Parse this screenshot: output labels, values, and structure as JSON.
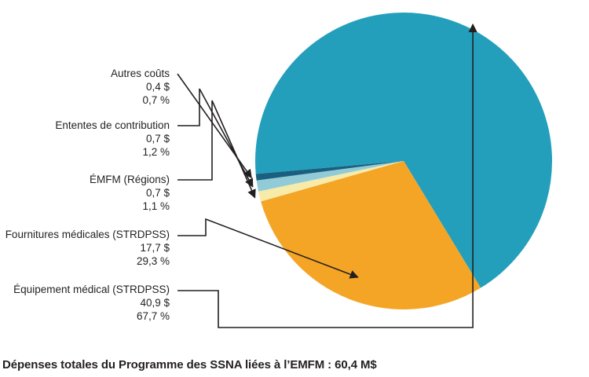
{
  "chart_data": {
    "type": "pie",
    "unit": "M$",
    "title": "",
    "slices": [
      {
        "label": "Équipement médical (STRDPSS)",
        "value_text": "40,9 $",
        "percent_text": "67,7 %",
        "value": 40.9,
        "percent": 67.7,
        "color": "#239fbc"
      },
      {
        "label": "Fournitures médicales (STRDPSS)",
        "value_text": "17,7 $",
        "percent_text": "29,3 %",
        "value": 17.7,
        "percent": 29.3,
        "color": "#f4a525"
      },
      {
        "label": "ÉMFM (Régions)",
        "value_text": "0,7 $",
        "percent_text": "1,1 %",
        "value": 0.7,
        "percent": 1.1,
        "color": "#f6eba8"
      },
      {
        "label": "Ententes de contribution",
        "value_text": "0,7 $",
        "percent_text": "1,2 %",
        "value": 0.7,
        "percent": 1.2,
        "color": "#92cbd8"
      },
      {
        "label": "Autres coûts",
        "value_text": "0,4 $",
        "percent_text": "0,7 %",
        "value": 0.4,
        "percent": 0.7,
        "color": "#1a5f7f"
      }
    ]
  },
  "caption": "Dépenses totales du Programme des SSNA liées à l’EMFM : 60,4 M$"
}
